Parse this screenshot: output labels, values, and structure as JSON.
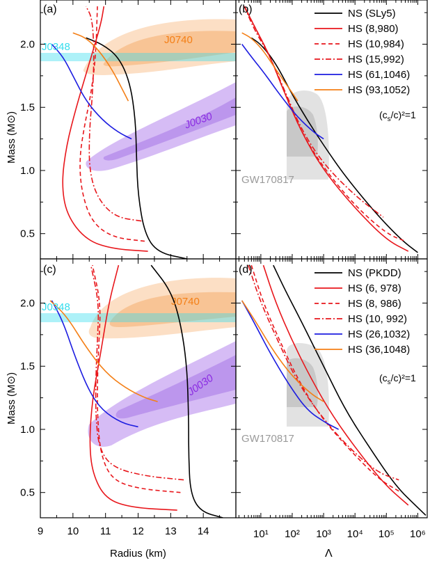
{
  "chart_data": [
    {
      "panel": "(a)",
      "type": "line",
      "xlabel": "",
      "ylabel": "Mass (M⊙)",
      "xlim": [
        9,
        15
      ],
      "ylim": [
        0.3,
        2.35
      ],
      "regions": [
        {
          "name": "J0348",
          "label": "J0348",
          "color": "#33dded",
          "y_range": [
            1.97,
            2.05
          ],
          "x_range": [
            9,
            12.1
          ]
        },
        {
          "name": "J0740",
          "label": "J0740",
          "color": "#f5a45a",
          "center": [
            12.5,
            2.07
          ]
        },
        {
          "name": "J0030",
          "label": "J0030",
          "color": "#a46be8",
          "center": [
            13.2,
            1.55
          ]
        }
      ],
      "series": [
        {
          "name": "NS (SLy5)",
          "color": "#000000",
          "points": [
            [
              13.5,
              0.3
            ],
            [
              12.6,
              0.35
            ],
            [
              12.2,
              0.5
            ],
            [
              12.0,
              0.8
            ],
            [
              11.95,
              1.1
            ],
            [
              11.92,
              1.4
            ],
            [
              11.75,
              1.7
            ],
            [
              11.4,
              1.9
            ],
            [
              10.9,
              2.0
            ],
            [
              10.4,
              2.05
            ]
          ]
        },
        {
          "name": "HS (8,980)",
          "color": "#e8161b",
          "dash": "solid",
          "points": [
            [
              12.3,
              0.36
            ],
            [
              11.2,
              0.38
            ],
            [
              10.4,
              0.45
            ],
            [
              9.8,
              0.65
            ],
            [
              9.65,
              0.9
            ],
            [
              9.8,
              1.2
            ],
            [
              10.1,
              1.5
            ],
            [
              10.5,
              1.85
            ],
            [
              10.85,
              2.15
            ],
            [
              10.95,
              2.3
            ]
          ]
        },
        {
          "name": "HS (10,984)",
          "color": "#e8161b",
          "dash": "6,4",
          "points": [
            [
              12.2,
              0.44
            ],
            [
              11.2,
              0.47
            ],
            [
              10.55,
              0.6
            ],
            [
              10.25,
              0.85
            ],
            [
              10.2,
              1.1
            ],
            [
              10.35,
              1.35
            ],
            [
              10.55,
              1.6
            ],
            [
              10.7,
              1.9
            ],
            [
              10.75,
              2.3
            ]
          ]
        },
        {
          "name": "HS (15,992)",
          "color": "#e8161b",
          "dash": "8,3,2,3",
          "points": [
            [
              12.1,
              0.6
            ],
            [
              11.3,
              0.63
            ],
            [
              10.75,
              0.78
            ],
            [
              10.5,
              1.0
            ],
            [
              10.5,
              1.3
            ],
            [
              10.6,
              1.6
            ],
            [
              10.65,
              1.9
            ],
            [
              10.6,
              2.2
            ],
            [
              10.4,
              2.3
            ]
          ]
        },
        {
          "name": "HS (61,1046)",
          "color": "#1c1ce0",
          "points": [
            [
              9.35,
              2.0
            ],
            [
              9.7,
              1.9
            ],
            [
              10.0,
              1.75
            ],
            [
              10.4,
              1.55
            ],
            [
              10.9,
              1.4
            ],
            [
              11.4,
              1.3
            ],
            [
              11.8,
              1.25
            ]
          ]
        },
        {
          "name": "HS (93,1052)",
          "color": "#f47f16",
          "points": [
            [
              10.0,
              2.09
            ],
            [
              10.4,
              2.05
            ],
            [
              10.8,
              1.95
            ],
            [
              11.2,
              1.8
            ],
            [
              11.5,
              1.65
            ],
            [
              11.7,
              1.55
            ]
          ]
        }
      ]
    },
    {
      "panel": "(b)",
      "type": "line",
      "xlabel": "",
      "ylabel": "",
      "xscale": "log",
      "xlim": [
        1.6,
        2000000
      ],
      "ylim": [
        0.3,
        2.35
      ],
      "equation": "(cₛ/c)²=1",
      "equation_base": "(c",
      "equation_sub": "s",
      "equation_tail": "/c)²=1",
      "region": {
        "label": "GW170817",
        "color": "#cfcfcf"
      },
      "legend": [
        "NS (SLy5)",
        "HS (8,980)",
        "HS (10,984)",
        "HS (15,992)",
        "HS (61,1046)",
        "HS (93,1052)"
      ],
      "series": [
        {
          "name": "NS (SLy5)",
          "color": "#000000",
          "points": [
            [
              5,
              2.05
            ],
            [
              10,
              2.0
            ],
            [
              30,
              1.85
            ],
            [
              100,
              1.6
            ],
            [
              300,
              1.4
            ],
            [
              1000,
              1.2
            ],
            [
              5000,
              0.95
            ],
            [
              50000,
              0.65
            ],
            [
              300000,
              0.45
            ],
            [
              1000000,
              0.35
            ]
          ]
        },
        {
          "name": "HS (8,980)",
          "color": "#e8161b",
          "dash": "solid",
          "points": [
            [
              3,
              2.3
            ],
            [
              6,
              2.15
            ],
            [
              20,
              1.9
            ],
            [
              60,
              1.6
            ],
            [
              200,
              1.3
            ],
            [
              1000,
              1.0
            ],
            [
              10000,
              0.7
            ],
            [
              100000,
              0.45
            ],
            [
              500000,
              0.36
            ]
          ]
        },
        {
          "name": "HS (10,984)",
          "color": "#e8161b",
          "dash": "6,4",
          "points": [
            [
              3,
              2.3
            ],
            [
              6,
              2.15
            ],
            [
              20,
              1.9
            ],
            [
              60,
              1.6
            ],
            [
              200,
              1.3
            ],
            [
              1000,
              1.02
            ],
            [
              10000,
              0.72
            ],
            [
              100000,
              0.5
            ],
            [
              400000,
              0.44
            ]
          ]
        },
        {
          "name": "HS (15,992)",
          "color": "#e8161b",
          "dash": "8,3,2,3",
          "points": [
            [
              3,
              2.3
            ],
            [
              6,
              2.12
            ],
            [
              20,
              1.9
            ],
            [
              60,
              1.62
            ],
            [
              200,
              1.32
            ],
            [
              1000,
              1.05
            ],
            [
              10000,
              0.8
            ],
            [
              80000,
              0.63
            ]
          ]
        },
        {
          "name": "HS (61,1046)",
          "color": "#1c1ce0",
          "points": [
            [
              2.5,
              2.0
            ],
            [
              5,
              1.9
            ],
            [
              15,
              1.75
            ],
            [
              40,
              1.6
            ],
            [
              150,
              1.42
            ],
            [
              500,
              1.3
            ],
            [
              1000,
              1.25
            ]
          ]
        },
        {
          "name": "HS (93,1052)",
          "color": "#f47f16",
          "points": [
            [
              2.5,
              2.09
            ],
            [
              5,
              2.05
            ],
            [
              12,
              1.95
            ],
            [
              30,
              1.8
            ],
            [
              80,
              1.65
            ],
            [
              150,
              1.55
            ]
          ]
        }
      ]
    },
    {
      "panel": "(c)",
      "type": "line",
      "xlabel": "Radius (km)",
      "ylabel": "Mass (M⊙)",
      "xlim": [
        9,
        15
      ],
      "ylim": [
        0.3,
        2.35
      ],
      "xticks": [
        9,
        10,
        11,
        12,
        13,
        14
      ],
      "regions": [
        {
          "name": "J0348",
          "label": "J0348",
          "color": "#33dded",
          "y_range": [
            1.97,
            2.05
          ],
          "x_range": [
            9,
            12.2
          ]
        },
        {
          "name": "J0740",
          "label": "J0740",
          "color": "#f5a45a",
          "center": [
            12.6,
            2.07
          ]
        },
        {
          "name": "J0030",
          "label": "J0030",
          "color": "#a46be8",
          "center": [
            13.2,
            1.45
          ]
        }
      ],
      "series": [
        {
          "name": "NS (PKDD)",
          "color": "#000000",
          "points": [
            [
              14.6,
              0.3
            ],
            [
              13.9,
              0.35
            ],
            [
              13.6,
              0.5
            ],
            [
              13.55,
              0.8
            ],
            [
              13.55,
              1.1
            ],
            [
              13.5,
              1.5
            ],
            [
              13.3,
              1.85
            ],
            [
              13.0,
              2.1
            ],
            [
              12.4,
              2.3
            ]
          ]
        },
        {
          "name": "HS (6, 978)",
          "color": "#e8161b",
          "dash": "solid",
          "points": [
            [
              13.2,
              0.36
            ],
            [
              11.8,
              0.38
            ],
            [
              11.0,
              0.45
            ],
            [
              10.6,
              0.65
            ],
            [
              10.5,
              0.9
            ],
            [
              10.6,
              1.25
            ],
            [
              10.85,
              1.6
            ],
            [
              11.1,
              2.0
            ],
            [
              11.4,
              2.3
            ]
          ]
        },
        {
          "name": "HS (8, 986)",
          "color": "#e8161b",
          "dash": "6,4",
          "points": [
            [
              13.3,
              0.5
            ],
            [
              12.0,
              0.53
            ],
            [
              11.2,
              0.6
            ],
            [
              10.85,
              0.8
            ],
            [
              10.75,
              1.1
            ],
            [
              10.75,
              1.4
            ],
            [
              10.8,
              1.7
            ],
            [
              10.85,
              2.0
            ],
            [
              10.6,
              2.3
            ]
          ]
        },
        {
          "name": "HS (10, 992)",
          "color": "#e8161b",
          "dash": "8,3,2,3",
          "points": [
            [
              13.4,
              0.6
            ],
            [
              12.2,
              0.63
            ],
            [
              11.2,
              0.7
            ],
            [
              10.8,
              0.85
            ],
            [
              10.7,
              1.1
            ],
            [
              10.7,
              1.4
            ],
            [
              10.75,
              1.7
            ],
            [
              10.8,
              2.0
            ],
            [
              10.55,
              2.3
            ]
          ]
        },
        {
          "name": "HS (26,1032)",
          "color": "#1c1ce0",
          "points": [
            [
              9.35,
              2.02
            ],
            [
              9.7,
              1.85
            ],
            [
              10.1,
              1.55
            ],
            [
              10.5,
              1.3
            ],
            [
              10.9,
              1.15
            ],
            [
              11.5,
              1.05
            ],
            [
              12.0,
              1.02
            ]
          ]
        },
        {
          "name": "HS (36,1048)",
          "color": "#f47f16",
          "points": [
            [
              9.3,
              2.02
            ],
            [
              9.8,
              1.9
            ],
            [
              10.4,
              1.65
            ],
            [
              11.0,
              1.45
            ],
            [
              11.6,
              1.33
            ],
            [
              12.2,
              1.25
            ],
            [
              12.6,
              1.22
            ]
          ]
        }
      ]
    },
    {
      "panel": "(d)",
      "type": "line",
      "xlabel": "Λ",
      "ylabel": "",
      "xscale": "log",
      "xlim": [
        1.6,
        2000000
      ],
      "ylim": [
        0.3,
        2.35
      ],
      "xticks": [
        "10¹",
        "10²",
        "10³",
        "10⁴",
        "10⁵",
        "10⁶"
      ],
      "equation": "(cₛ/c)²=1",
      "equation_base": "(c",
      "equation_sub": "s",
      "equation_tail": "/c)²=1",
      "region": {
        "label": "GW170817",
        "color": "#cfcfcf"
      },
      "legend": [
        "NS (PKDD)",
        "HS (6, 978)",
        "HS (8, 986)",
        "HS (10, 992)",
        "HS (26,1032)",
        "HS (36,1048)"
      ],
      "series": [
        {
          "name": "NS (PKDD)",
          "color": "#000000",
          "points": [
            [
              25,
              2.3
            ],
            [
              60,
              2.1
            ],
            [
              200,
              1.85
            ],
            [
              1000,
              1.5
            ],
            [
              5000,
              1.15
            ],
            [
              30000,
              0.85
            ],
            [
              200000,
              0.55
            ],
            [
              1000000,
              0.38
            ],
            [
              1800000,
              0.32
            ]
          ]
        },
        {
          "name": "HS (6, 978)",
          "color": "#e8161b",
          "dash": "solid",
          "points": [
            [
              12,
              2.3
            ],
            [
              30,
              2.0
            ],
            [
              100,
              1.7
            ],
            [
              400,
              1.4
            ],
            [
              2000,
              1.1
            ],
            [
              15000,
              0.8
            ],
            [
              100000,
              0.55
            ],
            [
              500000,
              0.4
            ]
          ]
        },
        {
          "name": "HS (8, 986)",
          "color": "#e8161b",
          "dash": "6,4",
          "points": [
            [
              5,
              2.3
            ],
            [
              12,
              2.0
            ],
            [
              40,
              1.7
            ],
            [
              150,
              1.4
            ],
            [
              700,
              1.12
            ],
            [
              6000,
              0.85
            ],
            [
              60000,
              0.6
            ],
            [
              300000,
              0.5
            ]
          ]
        },
        {
          "name": "HS (10, 992)",
          "color": "#e8161b",
          "dash": "8,3,2,3",
          "points": [
            [
              4,
              2.3
            ],
            [
              10,
              2.0
            ],
            [
              35,
              1.7
            ],
            [
              130,
              1.4
            ],
            [
              600,
              1.15
            ],
            [
              5000,
              0.88
            ],
            [
              50000,
              0.66
            ],
            [
              250000,
              0.6
            ]
          ]
        },
        {
          "name": "HS (26,1032)",
          "color": "#1c1ce0",
          "points": [
            [
              2.5,
              2.02
            ],
            [
              6,
              1.85
            ],
            [
              20,
              1.6
            ],
            [
              80,
              1.35
            ],
            [
              300,
              1.15
            ],
            [
              1200,
              1.05
            ],
            [
              3000,
              1.0
            ]
          ]
        },
        {
          "name": "HS (36,1048)",
          "color": "#f47f16",
          "points": [
            [
              2.5,
              2.02
            ],
            [
              7,
              1.85
            ],
            [
              25,
              1.62
            ],
            [
              100,
              1.42
            ],
            [
              400,
              1.28
            ],
            [
              1000,
              1.22
            ]
          ]
        }
      ]
    }
  ]
}
